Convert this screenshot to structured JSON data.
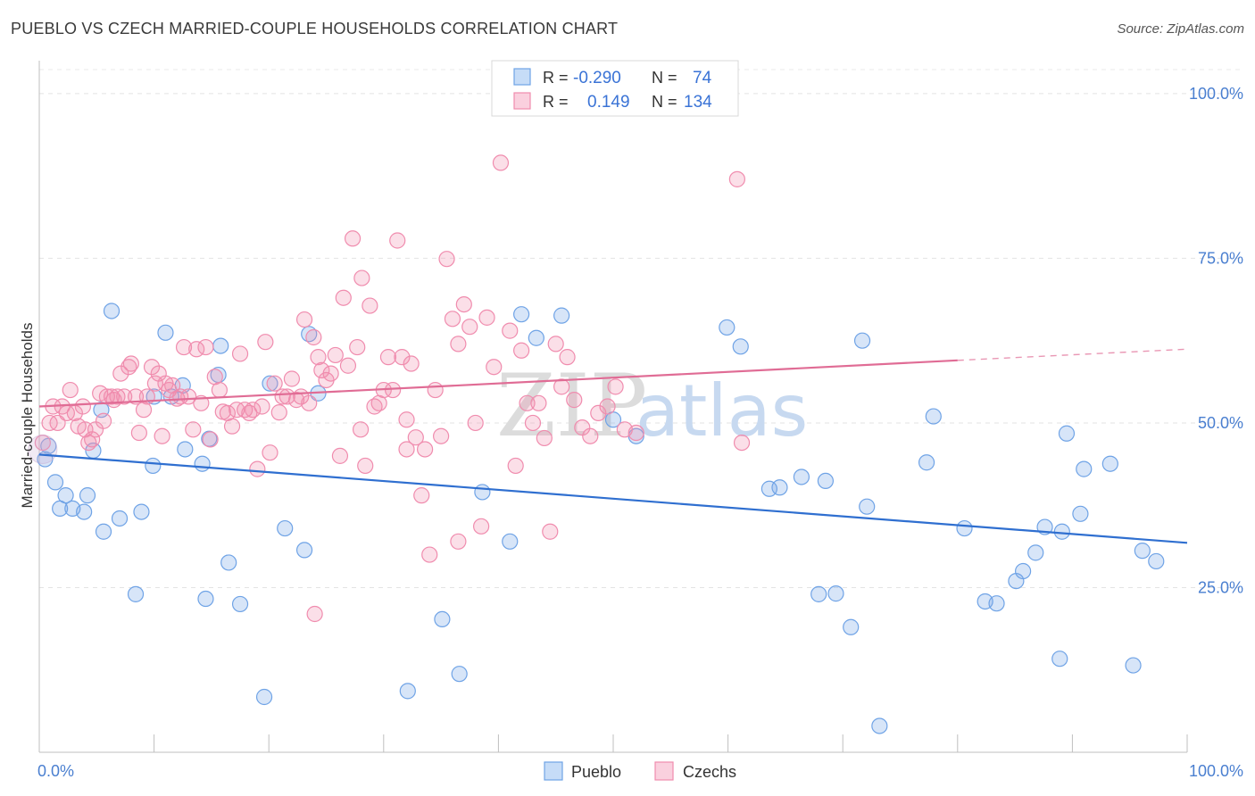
{
  "title": "PUEBLO VS CZECH MARRIED-COUPLE HOUSEHOLDS CORRELATION CHART",
  "source": "Source: ZipAtlas.com",
  "watermark": {
    "zip": "ZIP",
    "atlas": "atlas"
  },
  "legend_top": [
    {
      "r_label": "R =",
      "r_value": "-0.290",
      "n_label": "N =",
      "n_value": "74",
      "color": "#6fa3e6"
    },
    {
      "r_label": "R =",
      "r_value": "0.149",
      "n_label": "N =",
      "n_value": "134",
      "color": "#f08cae"
    }
  ],
  "legend_bottom": [
    {
      "label": "Pueblo",
      "color": "#6fa3e6"
    },
    {
      "label": "Czechs",
      "color": "#f08cae"
    }
  ],
  "chart_data": {
    "type": "scatter",
    "title": "PUEBLO VS CZECH MARRIED-COUPLE HOUSEHOLDS CORRELATION CHART",
    "xlabel": "",
    "ylabel": "Married-couple Households",
    "xlim": [
      0,
      100
    ],
    "ylim": [
      0,
      105
    ],
    "x_tick_labels": [
      "0.0%",
      "100.0%"
    ],
    "y_tick_labels": [
      "25.0%",
      "50.0%",
      "75.0%",
      "100.0%"
    ],
    "y_ticks": [
      25,
      50,
      75,
      100
    ],
    "grid": true,
    "series": [
      {
        "name": "Pueblo",
        "color": "#6fa3e6",
        "trend": {
          "x0": 0,
          "y0": 45.2,
          "x1": 100,
          "y1": 31.8
        },
        "points": [
          [
            0.5,
            44.5
          ],
          [
            0.8,
            46.5
          ],
          [
            1.4,
            41.0
          ],
          [
            1.8,
            37.0
          ],
          [
            2.3,
            39.0
          ],
          [
            2.9,
            37.0
          ],
          [
            3.9,
            36.5
          ],
          [
            4.2,
            39.0
          ],
          [
            4.7,
            45.8
          ],
          [
            5.4,
            52.0
          ],
          [
            5.6,
            33.5
          ],
          [
            6.3,
            67.0
          ],
          [
            7.0,
            35.5
          ],
          [
            8.4,
            24.0
          ],
          [
            8.9,
            36.5
          ],
          [
            9.9,
            43.5
          ],
          [
            10.0,
            54.0
          ],
          [
            11.0,
            63.7
          ],
          [
            11.5,
            54.0
          ],
          [
            12.5,
            55.7
          ],
          [
            12.7,
            46.0
          ],
          [
            14.2,
            43.8
          ],
          [
            14.5,
            23.3
          ],
          [
            14.8,
            47.6
          ],
          [
            15.6,
            57.3
          ],
          [
            15.8,
            61.7
          ],
          [
            16.5,
            28.8
          ],
          [
            17.5,
            22.5
          ],
          [
            19.6,
            8.4
          ],
          [
            20.1,
            56.0
          ],
          [
            21.4,
            34.0
          ],
          [
            23.1,
            30.7
          ],
          [
            23.5,
            63.5
          ],
          [
            24.3,
            54.5
          ],
          [
            32.1,
            9.3
          ],
          [
            35.1,
            20.2
          ],
          [
            36.6,
            11.9
          ],
          [
            38.6,
            39.5
          ],
          [
            41.0,
            32.0
          ],
          [
            42.0,
            66.5
          ],
          [
            43.3,
            62.9
          ],
          [
            45.5,
            66.3
          ],
          [
            59.9,
            64.5
          ],
          [
            61.1,
            61.6
          ],
          [
            63.6,
            40.0
          ],
          [
            64.5,
            40.2
          ],
          [
            66.4,
            41.8
          ],
          [
            67.9,
            24.0
          ],
          [
            68.5,
            41.2
          ],
          [
            69.4,
            24.1
          ],
          [
            70.7,
            19.0
          ],
          [
            71.7,
            62.5
          ],
          [
            72.1,
            37.3
          ],
          [
            73.2,
            4.0
          ],
          [
            77.3,
            44.0
          ],
          [
            77.9,
            51.0
          ],
          [
            80.6,
            34.0
          ],
          [
            82.4,
            22.9
          ],
          [
            83.4,
            22.6
          ],
          [
            85.1,
            26.0
          ],
          [
            85.7,
            27.5
          ],
          [
            86.8,
            30.3
          ],
          [
            87.6,
            34.2
          ],
          [
            88.9,
            14.2
          ],
          [
            89.1,
            33.5
          ],
          [
            89.5,
            48.4
          ],
          [
            90.7,
            36.2
          ],
          [
            91.0,
            43.0
          ],
          [
            93.3,
            43.8
          ],
          [
            95.3,
            13.2
          ],
          [
            96.1,
            30.6
          ],
          [
            97.3,
            29.0
          ],
          [
            50.0,
            50.5
          ],
          [
            52.0,
            48.0
          ]
        ]
      },
      {
        "name": "Czechs",
        "color": "#f08cae",
        "trend": {
          "x0": 0,
          "y0": 52.5,
          "x1": 80,
          "y1": 59.5,
          "dash_x1": 100,
          "dash_y1": 61.2
        },
        "points": [
          [
            0.3,
            47.0
          ],
          [
            0.9,
            50.0
          ],
          [
            1.2,
            52.5
          ],
          [
            1.6,
            50.0
          ],
          [
            2.0,
            52.5
          ],
          [
            2.4,
            51.5
          ],
          [
            2.7,
            55.0
          ],
          [
            3.1,
            51.5
          ],
          [
            3.4,
            49.5
          ],
          [
            3.8,
            52.5
          ],
          [
            4.0,
            49.0
          ],
          [
            4.3,
            47.0
          ],
          [
            4.6,
            47.5
          ],
          [
            4.9,
            49.0
          ],
          [
            5.3,
            54.5
          ],
          [
            5.6,
            50.3
          ],
          [
            5.9,
            54.0
          ],
          [
            6.3,
            54.0
          ],
          [
            6.5,
            53.5
          ],
          [
            6.8,
            54.0
          ],
          [
            7.1,
            57.5
          ],
          [
            7.4,
            54.0
          ],
          [
            7.8,
            58.5
          ],
          [
            8.0,
            59.0
          ],
          [
            8.4,
            54.0
          ],
          [
            8.7,
            48.5
          ],
          [
            9.1,
            52.0
          ],
          [
            9.4,
            54.0
          ],
          [
            9.8,
            58.5
          ],
          [
            10.1,
            56.0
          ],
          [
            10.4,
            57.5
          ],
          [
            10.7,
            48.0
          ],
          [
            11.0,
            56.0
          ],
          [
            11.3,
            55.0
          ],
          [
            11.6,
            55.7
          ],
          [
            12.0,
            53.7
          ],
          [
            12.3,
            54.0
          ],
          [
            12.6,
            61.5
          ],
          [
            13.0,
            54.0
          ],
          [
            13.4,
            49.0
          ],
          [
            13.7,
            61.2
          ],
          [
            14.1,
            53.0
          ],
          [
            14.5,
            61.5
          ],
          [
            14.9,
            47.5
          ],
          [
            15.3,
            57.0
          ],
          [
            15.7,
            55.0
          ],
          [
            16.0,
            51.7
          ],
          [
            16.4,
            51.5
          ],
          [
            16.8,
            49.5
          ],
          [
            17.2,
            52.0
          ],
          [
            17.5,
            60.5
          ],
          [
            17.9,
            52.0
          ],
          [
            18.3,
            51.5
          ],
          [
            18.6,
            52.0
          ],
          [
            19.0,
            43.0
          ],
          [
            19.4,
            52.5
          ],
          [
            19.7,
            62.3
          ],
          [
            20.1,
            45.5
          ],
          [
            20.5,
            56.0
          ],
          [
            20.9,
            51.6
          ],
          [
            21.2,
            54.0
          ],
          [
            21.6,
            54.0
          ],
          [
            22.0,
            56.7
          ],
          [
            22.4,
            53.5
          ],
          [
            22.8,
            54.0
          ],
          [
            23.1,
            65.7
          ],
          [
            23.5,
            53.0
          ],
          [
            23.9,
            63.0
          ],
          [
            24.3,
            60.0
          ],
          [
            24.6,
            58.0
          ],
          [
            25.0,
            56.5
          ],
          [
            25.4,
            57.5
          ],
          [
            25.8,
            60.3
          ],
          [
            26.2,
            45.0
          ],
          [
            26.5,
            69.0
          ],
          [
            26.9,
            58.7
          ],
          [
            27.3,
            78.0
          ],
          [
            27.7,
            61.5
          ],
          [
            28.1,
            72.0
          ],
          [
            28.4,
            43.5
          ],
          [
            28.8,
            67.8
          ],
          [
            29.2,
            52.5
          ],
          [
            29.6,
            53.0
          ],
          [
            30.0,
            55.0
          ],
          [
            30.4,
            60.0
          ],
          [
            30.8,
            55.0
          ],
          [
            31.2,
            77.7
          ],
          [
            31.6,
            60.0
          ],
          [
            32.0,
            46.0
          ],
          [
            32.4,
            59.0
          ],
          [
            32.8,
            47.8
          ],
          [
            33.3,
            39.0
          ],
          [
            33.6,
            46.0
          ],
          [
            34.0,
            30.0
          ],
          [
            34.5,
            55.0
          ],
          [
            35.0,
            48.0
          ],
          [
            35.5,
            74.9
          ],
          [
            36.0,
            65.8
          ],
          [
            36.5,
            62.0
          ],
          [
            37.0,
            68.0
          ],
          [
            37.5,
            64.6
          ],
          [
            38.0,
            50.0
          ],
          [
            38.5,
            34.3
          ],
          [
            39.0,
            66.0
          ],
          [
            39.6,
            58.5
          ],
          [
            40.2,
            89.5
          ],
          [
            41.0,
            64.0
          ],
          [
            41.5,
            43.5
          ],
          [
            42.0,
            61.0
          ],
          [
            42.5,
            53.0
          ],
          [
            43.0,
            50.0
          ],
          [
            43.5,
            53.0
          ],
          [
            44.0,
            47.7
          ],
          [
            44.5,
            33.5
          ],
          [
            45.0,
            62.0
          ],
          [
            45.5,
            55.5
          ],
          [
            46.0,
            60.0
          ],
          [
            46.6,
            53.5
          ],
          [
            47.3,
            49.3
          ],
          [
            48.0,
            48.0
          ],
          [
            48.7,
            51.5
          ],
          [
            49.5,
            52.5
          ],
          [
            50.2,
            55.5
          ],
          [
            51.0,
            49.0
          ],
          [
            52.0,
            48.5
          ],
          [
            60.8,
            87.0
          ],
          [
            61.2,
            47.0
          ],
          [
            24.0,
            21.0
          ],
          [
            28.0,
            49.0
          ],
          [
            36.5,
            32.0
          ],
          [
            32.0,
            50.5
          ]
        ]
      }
    ]
  }
}
